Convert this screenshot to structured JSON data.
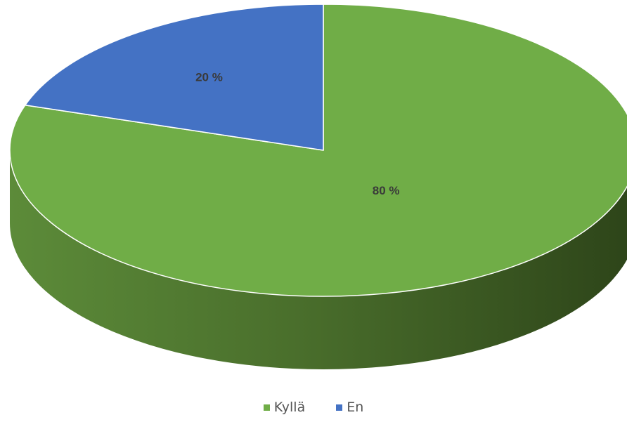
{
  "chart_data": {
    "type": "pie",
    "style": "3d",
    "categories": [
      "Kyllä",
      "En"
    ],
    "values": [
      80,
      20
    ],
    "data_labels": [
      "80 %",
      "20 %"
    ],
    "colors": [
      "#70ad47",
      "#4472c4"
    ],
    "legend_position": "bottom"
  }
}
